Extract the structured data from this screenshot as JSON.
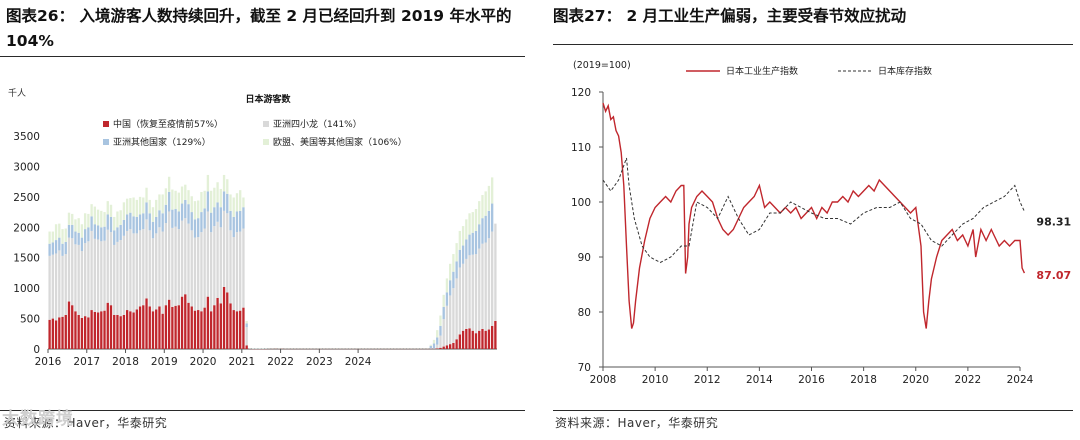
{
  "left": {
    "title_line1": "图表26：  入境游客人数持续回升，截至 2 月已经回升到 2019 年水平的",
    "title_line2": "104%",
    "source": "资料来源：Haver，华泰研究",
    "watermark": "大数跨境"
  },
  "right": {
    "title": "图表27：  2 月工业生产偏弱，主要受春节效应扰动",
    "source": "资料来源：Haver，华泰研究"
  },
  "chart_data": [
    {
      "type": "bar",
      "stacked": true,
      "title": "日本游客数",
      "unit_label": "千人",
      "ylim": [
        0,
        3500
      ],
      "yticks": [
        0,
        500,
        1000,
        1500,
        2000,
        2500,
        3000,
        3500
      ],
      "xticks": [
        "2016",
        "2017",
        "2018",
        "2019",
        "2020",
        "2021",
        "2022",
        "2023",
        "2024"
      ],
      "frequency": "monthly",
      "period": "2016-01 to 2024-02",
      "legend_position": "top",
      "series": [
        {
          "name": "中国（恢复至疫情前57%）",
          "color": "#c0272d",
          "values": [
            480,
            500,
            470,
            520,
            530,
            560,
            780,
            720,
            620,
            560,
            510,
            540,
            520,
            640,
            610,
            600,
            620,
            630,
            760,
            720,
            560,
            560,
            540,
            560,
            640,
            620,
            600,
            650,
            700,
            720,
            830,
            700,
            620,
            650,
            700,
            580,
            720,
            810,
            690,
            710,
            720,
            860,
            900,
            760,
            700,
            630,
            640,
            620,
            680,
            860,
            620,
            720,
            840,
            750,
            1020,
            930,
            750,
            640,
            620,
            630,
            680,
            60,
            5,
            3,
            3,
            3,
            3,
            3,
            5,
            5,
            6,
            5,
            6,
            5,
            5,
            5,
            5,
            5,
            5,
            5,
            5,
            5,
            5,
            5,
            5,
            5,
            5,
            5,
            5,
            5,
            5,
            5,
            5,
            5,
            5,
            5,
            5,
            5,
            5,
            5,
            5,
            5,
            5,
            5,
            5,
            5,
            5,
            5,
            5,
            5,
            5,
            5,
            5,
            5,
            5,
            5,
            5,
            5,
            5,
            5,
            10,
            20,
            40,
            60,
            80,
            100,
            160,
            240,
            300,
            330,
            340,
            300,
            260,
            300,
            330,
            300,
            320,
            380,
            460
          ]
        },
        {
          "name": "亚洲四小龙（141%）",
          "color": "#d9d9d9",
          "values": [
            1050,
            1050,
            1100,
            1100,
            1000,
            1000,
            1050,
            1100,
            1100,
            1150,
            1100,
            1200,
            1250,
            1300,
            1200,
            1200,
            1150,
            1150,
            1200,
            1200,
            1150,
            1200,
            1250,
            1300,
            1300,
            1350,
            1300,
            1250,
            1250,
            1250,
            1300,
            1250,
            1200,
            1250,
            1300,
            1350,
            1350,
            1450,
            1300,
            1300,
            1250,
            1250,
            1250,
            1300,
            1250,
            1200,
            1200,
            1300,
            1300,
            1400,
            1300,
            1300,
            1250,
            1250,
            1250,
            1300,
            1200,
            1200,
            1300,
            1300,
            1300,
            300,
            5,
            3,
            3,
            3,
            3,
            5,
            5,
            5,
            5,
            5,
            5,
            5,
            5,
            5,
            5,
            5,
            5,
            5,
            5,
            5,
            5,
            5,
            5,
            5,
            5,
            5,
            5,
            5,
            5,
            5,
            5,
            5,
            5,
            5,
            5,
            5,
            5,
            5,
            5,
            5,
            5,
            5,
            5,
            5,
            5,
            5,
            5,
            5,
            5,
            5,
            5,
            5,
            5,
            5,
            5,
            5,
            5,
            5,
            60,
            200,
            450,
            650,
            800,
            900,
            1000,
            1100,
            1100,
            1150,
            1200,
            1250,
            1300,
            1350,
            1400,
            1450,
            1500,
            1550,
            1600,
            1650
          ]
        },
        {
          "name": "亚洲其他国家（129%）",
          "color": "#a8c4e0",
          "values": [
            200,
            200,
            220,
            210,
            200,
            200,
            210,
            220,
            210,
            200,
            220,
            230,
            230,
            240,
            240,
            230,
            230,
            230,
            250,
            250,
            240,
            240,
            250,
            260,
            270,
            270,
            280,
            270,
            260,
            260,
            280,
            280,
            270,
            270,
            280,
            300,
            300,
            320,
            300,
            290,
            290,
            280,
            300,
            320,
            300,
            300,
            310,
            330,
            330,
            330,
            320,
            310,
            320,
            330,
            320,
            320,
            320,
            330,
            340,
            340,
            350,
            60,
            3,
            3,
            3,
            3,
            3,
            3,
            3,
            3,
            3,
            3,
            3,
            3,
            3,
            3,
            3,
            3,
            3,
            3,
            3,
            3,
            3,
            3,
            3,
            3,
            3,
            3,
            3,
            3,
            3,
            3,
            3,
            3,
            3,
            3,
            3,
            3,
            3,
            3,
            3,
            3,
            3,
            3,
            3,
            3,
            3,
            3,
            3,
            3,
            3,
            3,
            3,
            3,
            3,
            3,
            3,
            3,
            40,
            80,
            120,
            160,
            200,
            220,
            250,
            270,
            280,
            290,
            300,
            320,
            340,
            360,
            380,
            400,
            420,
            440,
            450,
            460
          ]
        },
        {
          "name": "欧盟、美国等其他国家（106%）",
          "color": "#e3f0d7",
          "values": [
            200,
            180,
            260,
            230,
            240,
            220,
            200,
            180,
            200,
            240,
            220,
            260,
            220,
            200,
            290,
            260,
            270,
            240,
            220,
            200,
            220,
            260,
            240,
            290,
            260,
            240,
            310,
            280,
            290,
            260,
            240,
            220,
            240,
            280,
            260,
            310,
            270,
            250,
            330,
            300,
            310,
            280,
            250,
            230,
            260,
            300,
            290,
            330,
            290,
            270,
            360,
            320,
            330,
            300,
            270,
            240,
            270,
            320,
            300,
            340,
            160,
            40,
            3,
            3,
            3,
            3,
            3,
            3,
            3,
            3,
            3,
            3,
            3,
            3,
            3,
            3,
            3,
            3,
            3,
            3,
            3,
            3,
            3,
            3,
            3,
            3,
            3,
            3,
            3,
            3,
            3,
            3,
            3,
            3,
            3,
            3,
            3,
            3,
            3,
            3,
            3,
            3,
            3,
            3,
            3,
            3,
            3,
            3,
            3,
            3,
            3,
            3,
            3,
            3,
            3,
            3,
            3,
            3,
            20,
            60,
            120,
            170,
            200,
            230,
            270,
            290,
            300,
            310,
            320,
            330,
            350,
            340,
            360,
            380,
            380,
            400,
            410,
            430
          ]
        }
      ]
    },
    {
      "type": "line",
      "index_label": "(2019=100)",
      "ylim": [
        70,
        120
      ],
      "yticks": [
        70,
        80,
        90,
        100,
        110,
        120
      ],
      "xlim": [
        2008,
        2024
      ],
      "xticks": [
        "2008",
        "2010",
        "2012",
        "2014",
        "2016",
        "2018",
        "2020",
        "2022",
        "2024"
      ],
      "legend_position": "top",
      "series": [
        {
          "name": "日本工业生产指数",
          "color": "#c0272d",
          "style": "solid",
          "end_label": "87.07",
          "x": [
            2008.0,
            2008.1,
            2008.2,
            2008.3,
            2008.4,
            2008.5,
            2008.6,
            2008.7,
            2008.8,
            2008.9,
            2009.0,
            2009.1,
            2009.17,
            2009.25,
            2009.4,
            2009.6,
            2009.8,
            2010.0,
            2010.2,
            2010.4,
            2010.6,
            2010.8,
            2011.0,
            2011.1,
            2011.17,
            2011.25,
            2011.3,
            2011.4,
            2011.6,
            2011.8,
            2012.0,
            2012.2,
            2012.4,
            2012.6,
            2012.8,
            2013.0,
            2013.2,
            2013.4,
            2013.6,
            2013.8,
            2014.0,
            2014.2,
            2014.4,
            2014.6,
            2014.8,
            2015.0,
            2015.2,
            2015.4,
            2015.6,
            2015.8,
            2016.0,
            2016.2,
            2016.4,
            2016.6,
            2016.8,
            2017.0,
            2017.2,
            2017.4,
            2017.6,
            2017.8,
            2018.0,
            2018.2,
            2018.4,
            2018.6,
            2018.8,
            2019.0,
            2019.2,
            2019.4,
            2019.6,
            2019.8,
            2020.0,
            2020.2,
            2020.3,
            2020.4,
            2020.5,
            2020.6,
            2020.8,
            2021.0,
            2021.2,
            2021.4,
            2021.6,
            2021.8,
            2022.0,
            2022.2,
            2022.3,
            2022.5,
            2022.7,
            2022.9,
            2023.0,
            2023.2,
            2023.4,
            2023.6,
            2023.8,
            2024.0,
            2024.08,
            2024.17
          ],
          "y": [
            118,
            116.5,
            117.5,
            115,
            115.5,
            113,
            112,
            109,
            103,
            92,
            82,
            77,
            78,
            82,
            88,
            93,
            97,
            99,
            100,
            101,
            100,
            102,
            103,
            103,
            87,
            90,
            96,
            99,
            101,
            102,
            101,
            100,
            97,
            95,
            94,
            95,
            97,
            99,
            100,
            101,
            103,
            99,
            100,
            99,
            98,
            99,
            98,
            99,
            97,
            98,
            99,
            97,
            99,
            98,
            100,
            100,
            101,
            100,
            102,
            101,
            102,
            103,
            102,
            104,
            103,
            102,
            101,
            100,
            99,
            98,
            99,
            92,
            80,
            77,
            82,
            86,
            90,
            93,
            94,
            95,
            93,
            94,
            92,
            95,
            90,
            95,
            93,
            95,
            94,
            92,
            93,
            92,
            93,
            93,
            88,
            87.07
          ]
        },
        {
          "name": "日本库存指数",
          "color": "#333333",
          "style": "dashed",
          "end_label": "98.31",
          "x": [
            2008.0,
            2008.3,
            2008.6,
            2008.9,
            2009.0,
            2009.2,
            2009.5,
            2009.8,
            2010.2,
            2010.6,
            2011.0,
            2011.3,
            2011.6,
            2012.0,
            2012.4,
            2012.8,
            2013.2,
            2013.6,
            2014.0,
            2014.4,
            2014.8,
            2015.2,
            2015.6,
            2016.0,
            2016.5,
            2017.0,
            2017.5,
            2018.0,
            2018.5,
            2019.0,
            2019.4,
            2019.8,
            2020.2,
            2020.6,
            2021.0,
            2021.4,
            2021.8,
            2022.2,
            2022.6,
            2023.0,
            2023.4,
            2023.8,
            2024.0,
            2024.17
          ],
          "y": [
            104,
            102,
            104,
            108,
            103,
            97,
            92,
            90,
            89,
            90,
            92,
            92,
            100,
            99,
            97,
            101,
            97,
            94,
            95,
            98,
            98,
            100,
            99,
            98,
            97,
            97,
            96,
            98,
            99,
            99,
            100,
            97,
            96,
            93,
            92,
            94,
            96,
            97,
            99,
            100,
            101,
            103,
            100,
            98.31
          ]
        }
      ]
    }
  ]
}
